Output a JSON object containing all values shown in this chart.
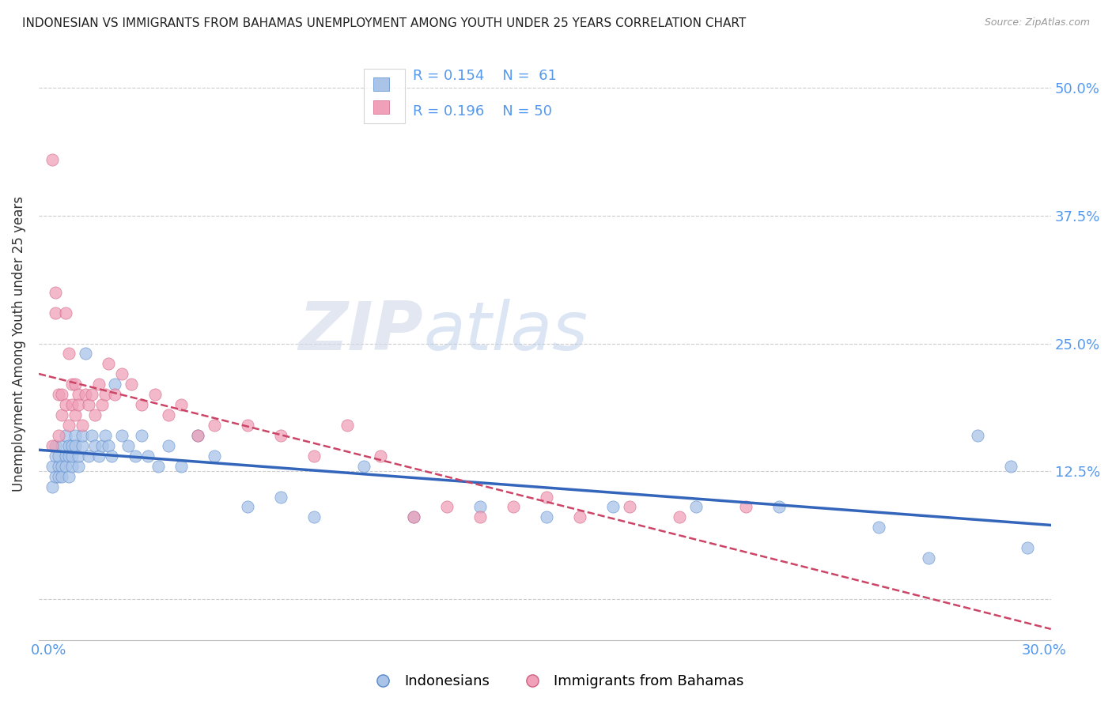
{
  "title": "INDONESIAN VS IMMIGRANTS FROM BAHAMAS UNEMPLOYMENT AMONG YOUTH UNDER 25 YEARS CORRELATION CHART",
  "source": "Source: ZipAtlas.com",
  "ylabel": "Unemployment Among Youth under 25 years",
  "xlim": [
    -0.003,
    0.302
  ],
  "ylim": [
    -0.04,
    0.54
  ],
  "yticks": [
    0.0,
    0.125,
    0.25,
    0.375,
    0.5
  ],
  "ytick_labels": [
    "",
    "12.5%",
    "25.0%",
    "37.5%",
    "50.0%"
  ],
  "xtick_positions": [
    0.0,
    0.05,
    0.1,
    0.15,
    0.2,
    0.25,
    0.3
  ],
  "color_indonesian_fill": "#aac4e8",
  "color_indonesian_edge": "#5588cc",
  "color_bahamas_fill": "#f0a0b8",
  "color_bahamas_edge": "#d06080",
  "color_line_indonesian": "#3366bb",
  "color_line_bahamas": "#cc4466",
  "color_axis_text": "#5599ee",
  "watermark_zip": "ZIP",
  "watermark_atlas": "atlas",
  "indonesian_x": [
    0.001,
    0.001,
    0.002,
    0.002,
    0.002,
    0.003,
    0.003,
    0.003,
    0.004,
    0.004,
    0.004,
    0.005,
    0.005,
    0.005,
    0.006,
    0.006,
    0.006,
    0.007,
    0.007,
    0.007,
    0.008,
    0.008,
    0.009,
    0.009,
    0.01,
    0.01,
    0.011,
    0.012,
    0.013,
    0.014,
    0.015,
    0.016,
    0.017,
    0.018,
    0.019,
    0.02,
    0.022,
    0.024,
    0.026,
    0.028,
    0.03,
    0.033,
    0.036,
    0.04,
    0.045,
    0.05,
    0.06,
    0.07,
    0.08,
    0.095,
    0.11,
    0.13,
    0.15,
    0.17,
    0.195,
    0.22,
    0.25,
    0.265,
    0.28,
    0.29,
    0.295
  ],
  "indonesian_y": [
    0.13,
    0.11,
    0.14,
    0.12,
    0.15,
    0.13,
    0.12,
    0.14,
    0.15,
    0.13,
    0.12,
    0.14,
    0.13,
    0.16,
    0.15,
    0.12,
    0.14,
    0.13,
    0.15,
    0.14,
    0.16,
    0.15,
    0.13,
    0.14,
    0.15,
    0.16,
    0.24,
    0.14,
    0.16,
    0.15,
    0.14,
    0.15,
    0.16,
    0.15,
    0.14,
    0.21,
    0.16,
    0.15,
    0.14,
    0.16,
    0.14,
    0.13,
    0.15,
    0.13,
    0.16,
    0.14,
    0.09,
    0.1,
    0.08,
    0.13,
    0.08,
    0.09,
    0.08,
    0.09,
    0.09,
    0.09,
    0.07,
    0.04,
    0.16,
    0.13,
    0.05
  ],
  "bahamas_x": [
    0.001,
    0.001,
    0.002,
    0.002,
    0.003,
    0.003,
    0.004,
    0.004,
    0.005,
    0.005,
    0.006,
    0.006,
    0.007,
    0.007,
    0.008,
    0.008,
    0.009,
    0.009,
    0.01,
    0.011,
    0.012,
    0.013,
    0.014,
    0.015,
    0.016,
    0.017,
    0.018,
    0.02,
    0.022,
    0.025,
    0.028,
    0.032,
    0.036,
    0.04,
    0.045,
    0.05,
    0.06,
    0.07,
    0.08,
    0.09,
    0.1,
    0.11,
    0.12,
    0.13,
    0.14,
    0.15,
    0.16,
    0.175,
    0.19,
    0.21
  ],
  "bahamas_y": [
    0.43,
    0.15,
    0.3,
    0.28,
    0.2,
    0.16,
    0.2,
    0.18,
    0.28,
    0.19,
    0.17,
    0.24,
    0.21,
    0.19,
    0.21,
    0.18,
    0.2,
    0.19,
    0.17,
    0.2,
    0.19,
    0.2,
    0.18,
    0.21,
    0.19,
    0.2,
    0.23,
    0.2,
    0.22,
    0.21,
    0.19,
    0.2,
    0.18,
    0.19,
    0.16,
    0.17,
    0.17,
    0.16,
    0.14,
    0.17,
    0.14,
    0.08,
    0.09,
    0.08,
    0.09,
    0.1,
    0.08,
    0.09,
    0.08,
    0.09
  ]
}
